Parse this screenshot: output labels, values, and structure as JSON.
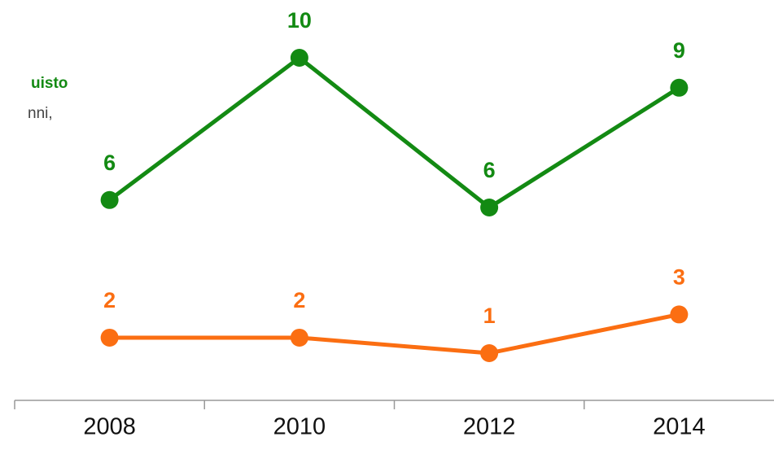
{
  "chart_data": {
    "type": "line",
    "annotations": [
      "uisto",
      "nni,"
    ],
    "categories": [
      "2008",
      "2010",
      "2012",
      "2014"
    ],
    "series": [
      {
        "color": "#138a13",
        "values": [
          6.2,
          10,
          6,
          9.2
        ],
        "value_labels": [
          "6",
          "10",
          "6",
          "9"
        ]
      },
      {
        "color": "#fb6e12",
        "values": [
          2,
          2,
          1.4,
          2.9
        ],
        "value_labels": [
          "2",
          "2",
          "1",
          "3"
        ],
        "axis": "y2"
      }
    ],
    "ylim": [
      0,
      11
    ],
    "y2lim": [
      -1.66,
      14.3
    ]
  }
}
